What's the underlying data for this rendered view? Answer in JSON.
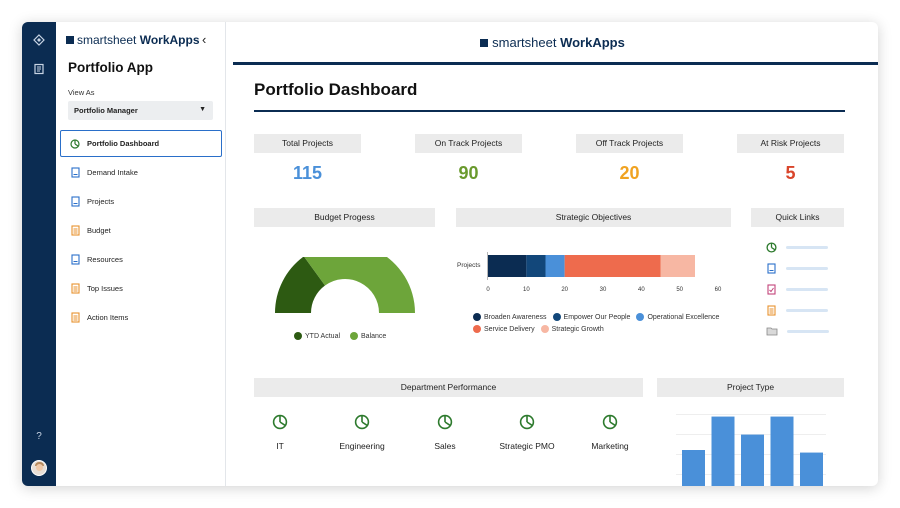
{
  "sidebar": {
    "brand_name": "smartsheet",
    "brand_product": "WorkApps",
    "app_title": "Portfolio App",
    "view_as_label": "View As",
    "view_as_value": "Portfolio Manager",
    "items": [
      {
        "label": "Portfolio Dashboard",
        "icon": "pie-chart-icon",
        "active": true
      },
      {
        "label": "Demand Intake",
        "icon": "form-icon"
      },
      {
        "label": "Projects",
        "icon": "sheet-icon"
      },
      {
        "label": "Budget",
        "icon": "report-icon"
      },
      {
        "label": "Resources",
        "icon": "sheet-icon"
      },
      {
        "label": "Top Issues",
        "icon": "report-icon"
      },
      {
        "label": "Action Items",
        "icon": "report-icon"
      }
    ],
    "help_label": "?"
  },
  "header": {
    "brand_name": "smartsheet",
    "brand_product": "WorkApps",
    "title": "Portfolio Dashboard"
  },
  "kpis": [
    {
      "label": "Total Projects",
      "value": "115",
      "color": "#4a90d9"
    },
    {
      "label": "On Track Projects",
      "value": "90",
      "color": "#6a9a2e"
    },
    {
      "label": "Off Track Projects",
      "value": "20",
      "color": "#f0a322"
    },
    {
      "label": "At Risk Projects",
      "value": "5",
      "color": "#d9452b"
    }
  ],
  "budget": {
    "title": "Budget Progess",
    "legend": [
      {
        "label": "YTD Actual",
        "color": "#2d5a12"
      },
      {
        "label": "Balance",
        "color": "#6da53a"
      }
    ]
  },
  "strategic": {
    "title": "Strategic Objectives",
    "category_label": "Projects",
    "legend": [
      {
        "label": "Broaden Awareness",
        "color": "#0b2c52"
      },
      {
        "label": "Empower Our People",
        "color": "#12477a"
      },
      {
        "label": "Operational Excellence",
        "color": "#4a90d9"
      },
      {
        "label": "Service Delivery",
        "color": "#ee6b4d"
      },
      {
        "label": "Strategic Growth",
        "color": "#f7b7a3"
      }
    ]
  },
  "chart_data": [
    {
      "type": "bar",
      "orientation": "horizontal",
      "stacked": true,
      "title": "Strategic Objectives",
      "categories": [
        "Projects"
      ],
      "xlim": [
        0,
        60
      ],
      "xticks": [
        "0",
        "10",
        "20",
        "30",
        "40",
        "50",
        "60"
      ],
      "series": [
        {
          "name": "Broaden Awareness",
          "values": [
            10
          ],
          "color": "#0b2c52"
        },
        {
          "name": "Empower Our People",
          "values": [
            5
          ],
          "color": "#12477a"
        },
        {
          "name": "Operational Excellence",
          "values": [
            5
          ],
          "color": "#4a90d9"
        },
        {
          "name": "Service Delivery",
          "values": [
            25
          ],
          "color": "#ee6b4d"
        },
        {
          "name": "Strategic Growth",
          "values": [
            9
          ],
          "color": "#f7b7a3"
        }
      ],
      "legend_position": "bottom",
      "grid": false
    },
    {
      "type": "pie",
      "style": "half-donut",
      "title": "Budget Progess",
      "categories": [
        "YTD Actual",
        "Balance"
      ],
      "values": [
        30,
        70
      ],
      "colors": [
        "#2d5a12",
        "#6da53a"
      ],
      "legend_position": "bottom"
    },
    {
      "type": "bar",
      "title": "Project Type",
      "values": [
        14,
        27,
        20,
        27,
        13
      ],
      "color": "#4a90d9"
    }
  ],
  "quick_links": {
    "title": "Quick Links",
    "icons": [
      "pie-chart-icon",
      "form-icon",
      "report-pink-icon",
      "report-icon",
      "folder-icon"
    ]
  },
  "department": {
    "title": "Department Performance",
    "items": [
      "IT",
      "Engineering",
      "Sales",
      "Strategic PMO",
      "Marketing"
    ]
  },
  "project_type": {
    "title": "Project Type"
  }
}
